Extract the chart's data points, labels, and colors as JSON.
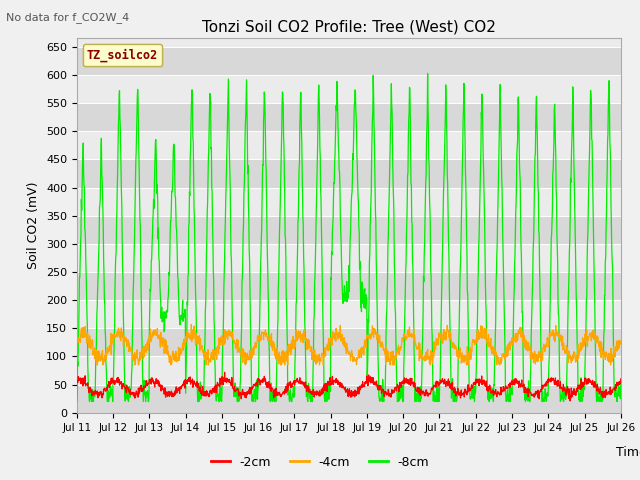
{
  "title": "Tonzi Soil CO2 Profile: Tree (West) CO2",
  "top_left_text": "No data for f_CO2W_4",
  "ylabel": "Soil CO2 (mV)",
  "xlabel": "Time",
  "legend_label": "TZ_soilco2",
  "ylim": [
    0,
    665
  ],
  "yticks": [
    0,
    50,
    100,
    150,
    200,
    250,
    300,
    350,
    400,
    450,
    500,
    550,
    600,
    650
  ],
  "series_labels": [
    "-2cm",
    "-4cm",
    "-8cm"
  ],
  "series_colors": [
    "#ff0000",
    "#ffa500",
    "#00ee00"
  ],
  "fig_bg": "#f0f0f0",
  "plot_bg_light": "#ebebeb",
  "plot_bg_dark": "#d8d8d8",
  "grid_color": "#ffffff",
  "n_days": 15,
  "points_per_day": 96,
  "start_day": 11,
  "end_day": 26,
  "figsize": [
    6.4,
    4.8
  ],
  "dpi": 100
}
